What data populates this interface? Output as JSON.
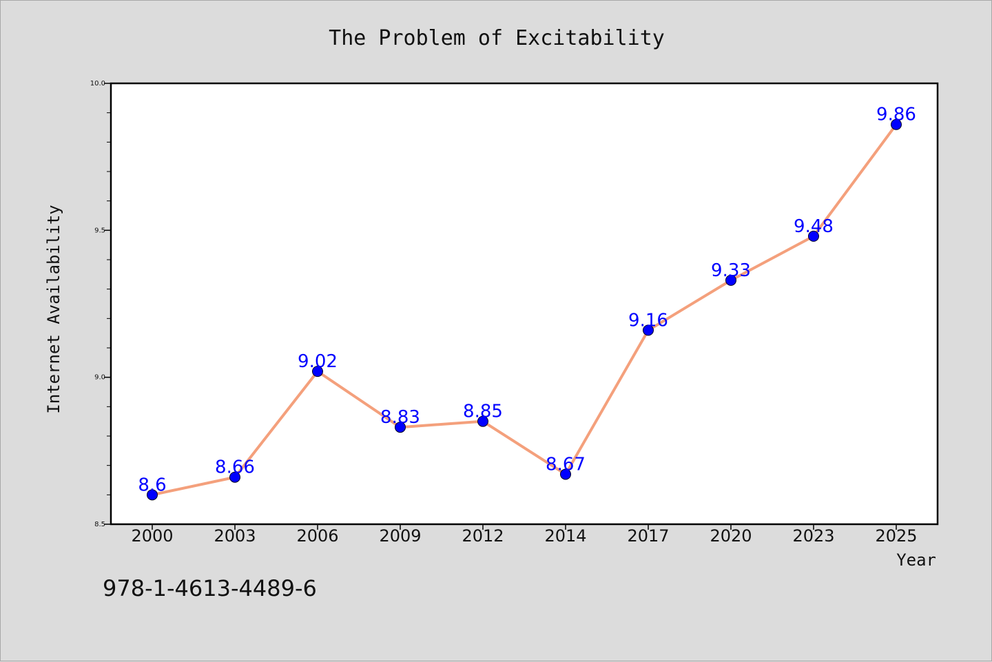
{
  "chart_data": {
    "type": "line",
    "title": "The Problem of Excitability",
    "xlabel": "Year",
    "ylabel": "Internet Availability",
    "categories": [
      "2000",
      "2003",
      "2006",
      "2009",
      "2012",
      "2014",
      "2017",
      "2020",
      "2023",
      "2025"
    ],
    "series": [
      {
        "values": [
          8.6,
          8.66,
          9.02,
          8.83,
          8.85,
          8.67,
          9.16,
          9.33,
          9.48,
          9.86
        ],
        "data_labels": [
          "8.6",
          "8.66",
          "9.02",
          "8.83",
          "8.85",
          "8.67",
          "9.16",
          "9.33",
          "9.48",
          "9.86"
        ]
      }
    ],
    "ylim": [
      8.5,
      10.0
    ],
    "yticks": [
      "8.5",
      "9.0",
      "9.5",
      "10.0"
    ],
    "grid": false,
    "legend": "none",
    "colors": {
      "line": "#f4a07c",
      "marker": "#0000ff",
      "data_label": "#0000ff",
      "background": "#dcdcdc",
      "plot_background": "#ffffff"
    }
  },
  "annotation": "978-1-4613-4489-6"
}
